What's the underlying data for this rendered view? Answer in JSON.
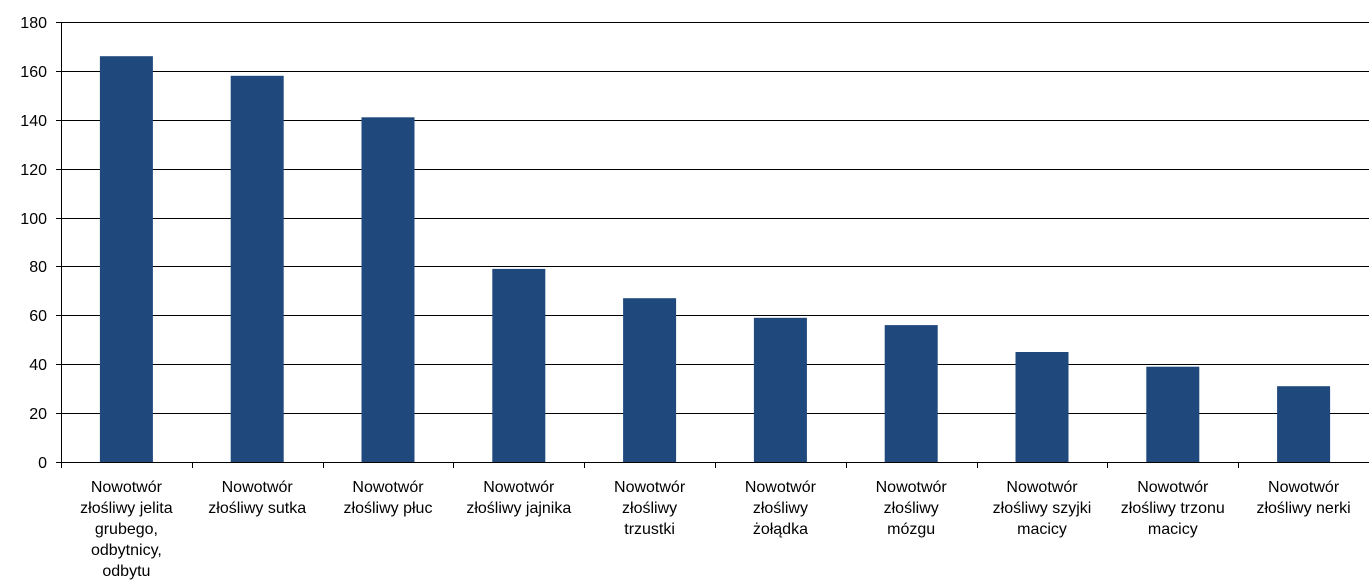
{
  "chart_data": {
    "type": "bar",
    "title": "",
    "xlabel": "",
    "ylabel": "",
    "ylim": [
      0,
      180
    ],
    "yticks": [
      0,
      20,
      40,
      60,
      80,
      100,
      120,
      140,
      160,
      180
    ],
    "grid": true,
    "legend": "none",
    "bar_color": "#1f497d",
    "categories": [
      [
        "Nowotwór",
        "złośliwy jelita",
        "grubego,",
        "odbytnicy,",
        "odbytu"
      ],
      [
        "Nowotwór",
        "złośliwy sutka"
      ],
      [
        "Nowotwór",
        "złośliwy płuc"
      ],
      [
        "Nowotwór",
        "złośliwy jajnika"
      ],
      [
        "Nowotwór",
        "złośliwy",
        "trzustki"
      ],
      [
        "Nowotwór",
        "złośliwy",
        "żołądka"
      ],
      [
        "Nowotwór",
        "złośliwy",
        "mózgu"
      ],
      [
        "Nowotwór",
        "złośliwy szyjki",
        "macicy"
      ],
      [
        "Nowotwór",
        "złośliwy trzonu",
        "macicy"
      ],
      [
        "Nowotwór",
        "złośliwy nerki"
      ]
    ],
    "values": [
      166,
      158,
      141,
      79,
      67,
      59,
      56,
      45,
      39,
      31
    ]
  }
}
